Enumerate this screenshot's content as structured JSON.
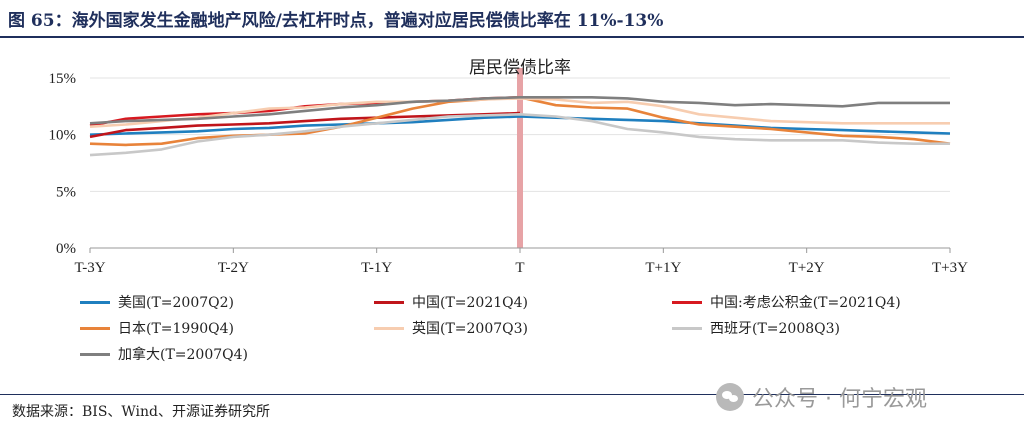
{
  "title": "图 65：海外国家发生金融地产风险/去杠杆时点，普遍对应居民偿债比率在 11%-13%",
  "source": "数据来源：BIS、Wind、开源证券研究所",
  "watermark": "公众号 · 何宁宏观",
  "chart_data": {
    "type": "line",
    "annotation": "居民偿债比率",
    "ylim": [
      0,
      15
    ],
    "yticks": [
      "0%",
      "5%",
      "10%",
      "15%"
    ],
    "yticks_values": [
      0,
      5,
      10,
      15
    ],
    "x_labels": [
      "T-3Y",
      "T-2Y",
      "T-1Y",
      "T",
      "T+1Y",
      "T+2Y",
      "T+3Y"
    ],
    "x": [
      -12,
      -11,
      -10,
      -9,
      -8,
      -7,
      -6,
      -5,
      -4,
      -3,
      -2,
      -1,
      0,
      1,
      2,
      3,
      4,
      5,
      6,
      7,
      8,
      9,
      10,
      11,
      12
    ],
    "event_x": 0,
    "event_color": "#e7a3a6",
    "series": [
      {
        "name": "美国(T=2007Q2)",
        "color": "#1f7fbf",
        "values": [
          10.0,
          10.1,
          10.2,
          10.3,
          10.5,
          10.6,
          10.8,
          10.9,
          11.0,
          11.1,
          11.3,
          11.5,
          11.6,
          11.5,
          11.4,
          11.3,
          11.2,
          11.0,
          10.8,
          10.6,
          10.5,
          10.4,
          10.3,
          10.2,
          10.1
        ]
      },
      {
        "name": "中国(T=2021Q4)",
        "color": "#c0151b",
        "values": [
          9.8,
          10.4,
          10.6,
          10.8,
          10.9,
          11.0,
          11.2,
          11.4,
          11.5,
          11.6,
          11.7,
          11.8,
          11.9,
          null,
          null,
          null,
          null,
          null,
          null,
          null,
          null,
          null,
          null,
          null,
          null
        ]
      },
      {
        "name": "中国:考虑公积金(T=2021Q4)",
        "color": "#d71920",
        "values": [
          10.8,
          11.4,
          11.6,
          11.8,
          11.9,
          12.1,
          12.5,
          12.7,
          12.8,
          12.9,
          13.0,
          13.2,
          13.3,
          null,
          null,
          null,
          null,
          null,
          null,
          null,
          null,
          null,
          null,
          null,
          null
        ]
      },
      {
        "name": "日本(T=1990Q4)",
        "color": "#e8833a",
        "values": [
          9.2,
          9.1,
          9.2,
          9.7,
          9.9,
          10.0,
          10.1,
          10.7,
          11.5,
          12.3,
          12.9,
          13.1,
          13.3,
          12.6,
          12.4,
          12.3,
          11.5,
          10.9,
          10.7,
          10.5,
          10.2,
          9.9,
          9.8,
          9.6,
          9.2
        ]
      },
      {
        "name": "英国(T=2007Q3)",
        "color": "#f7cdb0",
        "values": [
          10.7,
          10.9,
          11.2,
          11.5,
          11.9,
          12.3,
          12.4,
          12.7,
          12.9,
          12.9,
          13.0,
          13.1,
          13.2,
          13.1,
          12.8,
          12.9,
          12.5,
          11.8,
          11.5,
          11.2,
          11.1,
          11.0,
          11.0,
          11.0,
          11.0
        ]
      },
      {
        "name": "西班牙(T=2008Q3)",
        "color": "#c8c8c8",
        "values": [
          8.2,
          8.4,
          8.7,
          9.4,
          9.8,
          10.0,
          10.3,
          10.7,
          11.0,
          11.3,
          11.6,
          11.7,
          11.8,
          11.6,
          11.2,
          10.5,
          10.2,
          9.8,
          9.6,
          9.5,
          9.5,
          9.5,
          9.3,
          9.2,
          9.2
        ]
      },
      {
        "name": "加拿大(T=2007Q4)",
        "color": "#7f7f7f",
        "values": [
          11.0,
          11.2,
          11.3,
          11.4,
          11.6,
          11.8,
          12.1,
          12.4,
          12.6,
          12.9,
          13.0,
          13.2,
          13.3,
          13.3,
          13.3,
          13.2,
          12.9,
          12.8,
          12.6,
          12.7,
          12.6,
          12.5,
          12.8,
          12.8,
          12.8
        ]
      }
    ]
  }
}
